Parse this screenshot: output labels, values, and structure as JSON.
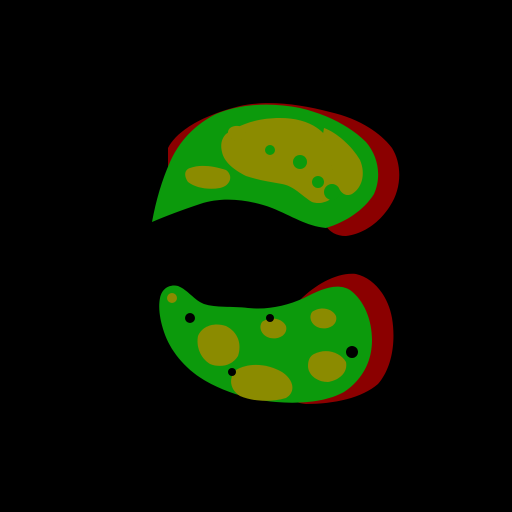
{
  "image": {
    "background_color": "#000000",
    "segments": [
      {
        "name": "outer-rim",
        "color": "#8b0000"
      },
      {
        "name": "tissue",
        "color": "#0c9a0c"
      },
      {
        "name": "core",
        "color": "#8b8b00"
      }
    ]
  }
}
